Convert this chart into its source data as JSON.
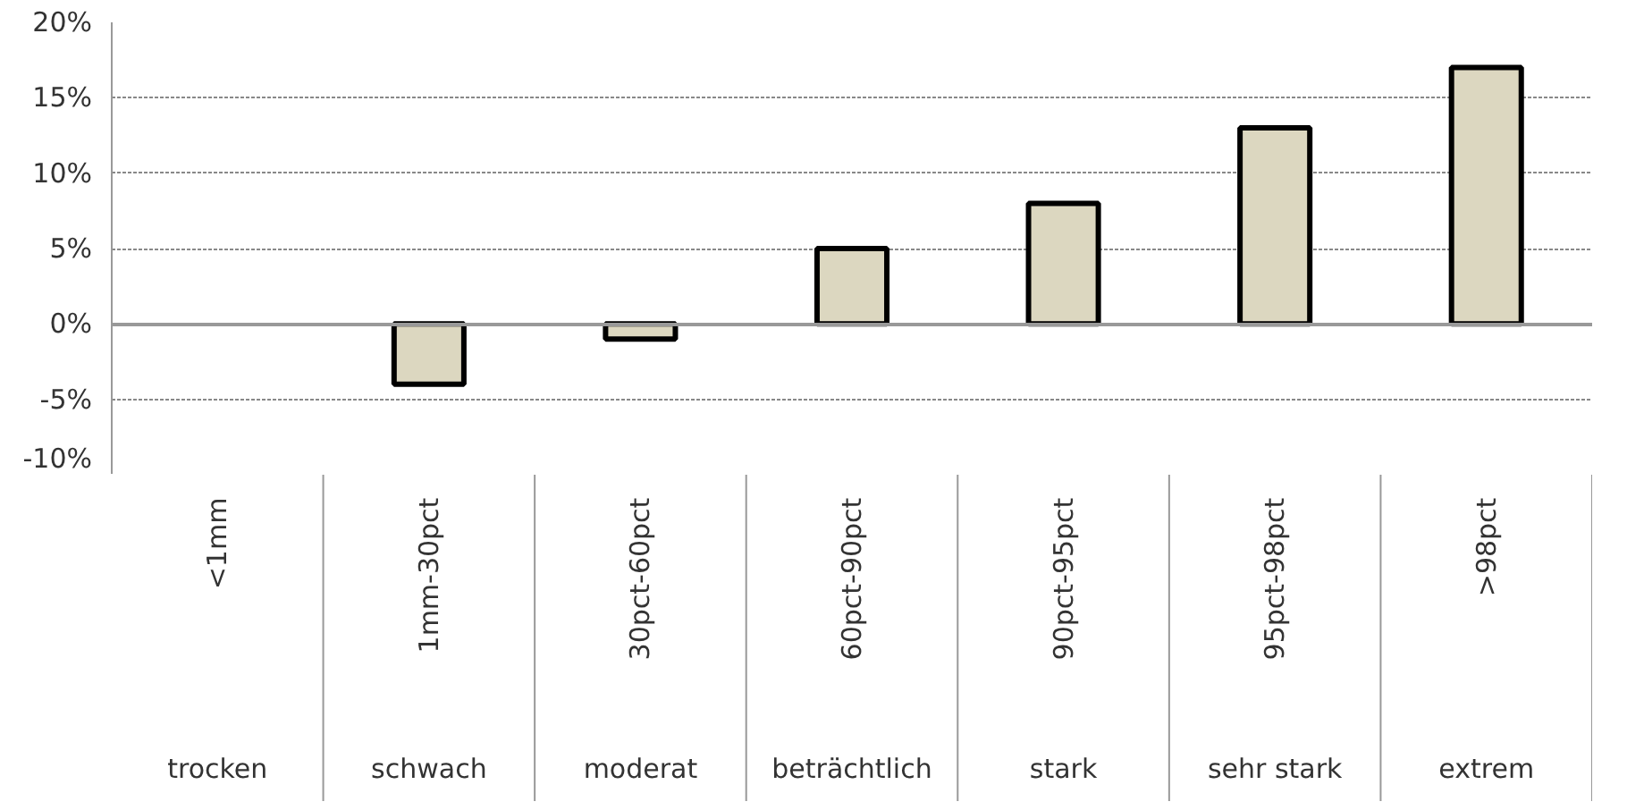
{
  "chart_data": {
    "type": "bar",
    "categories": [
      "<1mm\ntrocken",
      "1mm-30pct\nschwach",
      "30pct-60pct\nmoderat",
      "60pct-90pct\nbeträchtlich",
      "90pct-95pct\nstark",
      "95pct-98pct\nsehr stark",
      ">98pct\nextrem"
    ],
    "values": [
      null,
      -4,
      -1,
      5,
      8,
      13,
      17
    ],
    "color": "#dcd7c0",
    "ylim": [
      -10,
      20
    ],
    "yticks": [
      {
        "value": -10,
        "label": "-10%"
      },
      {
        "value": -5,
        "label": "-5%"
      },
      {
        "value": 0,
        "label": "0%"
      },
      {
        "value": 5,
        "label": "5%"
      },
      {
        "value": 10,
        "label": "10%"
      },
      {
        "value": 15,
        "label": "15%"
      },
      {
        "value": 20,
        "label": "20%"
      }
    ],
    "grid": "y"
  }
}
